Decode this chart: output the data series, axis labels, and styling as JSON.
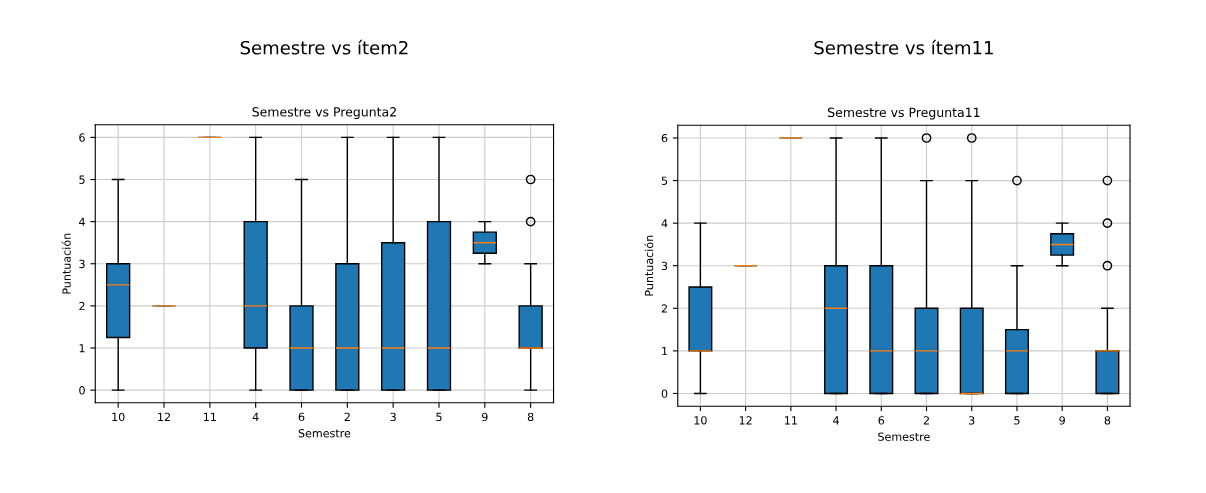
{
  "chart_data": [
    {
      "type": "box",
      "title": "Semestre vs ítem2",
      "subtitle": "Semestre vs Pregunta2",
      "xlabel": "Semestre",
      "ylabel": "Puntuación",
      "color": "#1f77b4",
      "grid": true,
      "ylim": [
        -0.3,
        6.3
      ],
      "yticks": [
        0,
        1,
        2,
        3,
        4,
        5,
        6
      ],
      "categories": [
        "10",
        "12",
        "11",
        "4",
        "6",
        "2",
        "3",
        "5",
        "9",
        "8"
      ],
      "boxes": [
        {
          "low": 0,
          "q1": 1.25,
          "median": 2.5,
          "q3": 3,
          "high": 5
        },
        {
          "low": 2,
          "q1": 2,
          "median": 2,
          "q3": 2,
          "high": 2
        },
        {
          "low": 6,
          "q1": 6,
          "median": 6,
          "q3": 6,
          "high": 6
        },
        {
          "low": 0,
          "q1": 1,
          "median": 2,
          "q3": 4,
          "high": 6
        },
        {
          "low": 0,
          "q1": 0,
          "median": 1,
          "q3": 2,
          "high": 5
        },
        {
          "low": 0,
          "q1": 0,
          "median": 1,
          "q3": 3,
          "high": 6
        },
        {
          "low": 0,
          "q1": 0,
          "median": 1,
          "q3": 3.5,
          "high": 6
        },
        {
          "low": 0,
          "q1": 0,
          "median": 1,
          "q3": 4,
          "high": 6
        },
        {
          "low": 3,
          "q1": 3.25,
          "median": 3.5,
          "q3": 3.75,
          "high": 4
        },
        {
          "low": 0,
          "q1": 1,
          "median": 1,
          "q3": 2,
          "high": 3,
          "outliers": [
            4,
            5
          ]
        }
      ]
    },
    {
      "type": "box",
      "title": "Semestre vs ítem11",
      "subtitle": "Semestre vs Pregunta11",
      "xlabel": "Semestre",
      "ylabel": "Puntuación",
      "color": "#1f77b4",
      "grid": true,
      "ylim": [
        -0.3,
        6.3
      ],
      "yticks": [
        0,
        1,
        2,
        3,
        4,
        5,
        6
      ],
      "categories": [
        "10",
        "12",
        "11",
        "4",
        "6",
        "2",
        "3",
        "5",
        "9",
        "8"
      ],
      "boxes": [
        {
          "low": 0,
          "q1": 1,
          "median": 1,
          "q3": 2.5,
          "high": 4
        },
        {
          "low": 3,
          "q1": 3,
          "median": 3,
          "q3": 3,
          "high": 3
        },
        {
          "low": 6,
          "q1": 6,
          "median": 6,
          "q3": 6,
          "high": 6
        },
        {
          "low": 0,
          "q1": 0,
          "median": 2,
          "q3": 3,
          "high": 6
        },
        {
          "low": 0,
          "q1": 0,
          "median": 1,
          "q3": 3,
          "high": 6
        },
        {
          "low": 0,
          "q1": 0,
          "median": 1,
          "q3": 2,
          "high": 5,
          "outliers": [
            6
          ]
        },
        {
          "low": 0,
          "q1": 0,
          "median": 0,
          "q3": 2,
          "high": 5,
          "outliers": [
            6
          ]
        },
        {
          "low": 0,
          "q1": 0,
          "median": 1,
          "q3": 1.5,
          "high": 3,
          "outliers": [
            5
          ]
        },
        {
          "low": 3,
          "q1": 3.25,
          "median": 3.5,
          "q3": 3.75,
          "high": 4
        },
        {
          "low": 0,
          "q1": 0,
          "median": 1,
          "q3": 1,
          "high": 2,
          "outliers": [
            3,
            4,
            5
          ]
        }
      ]
    }
  ]
}
